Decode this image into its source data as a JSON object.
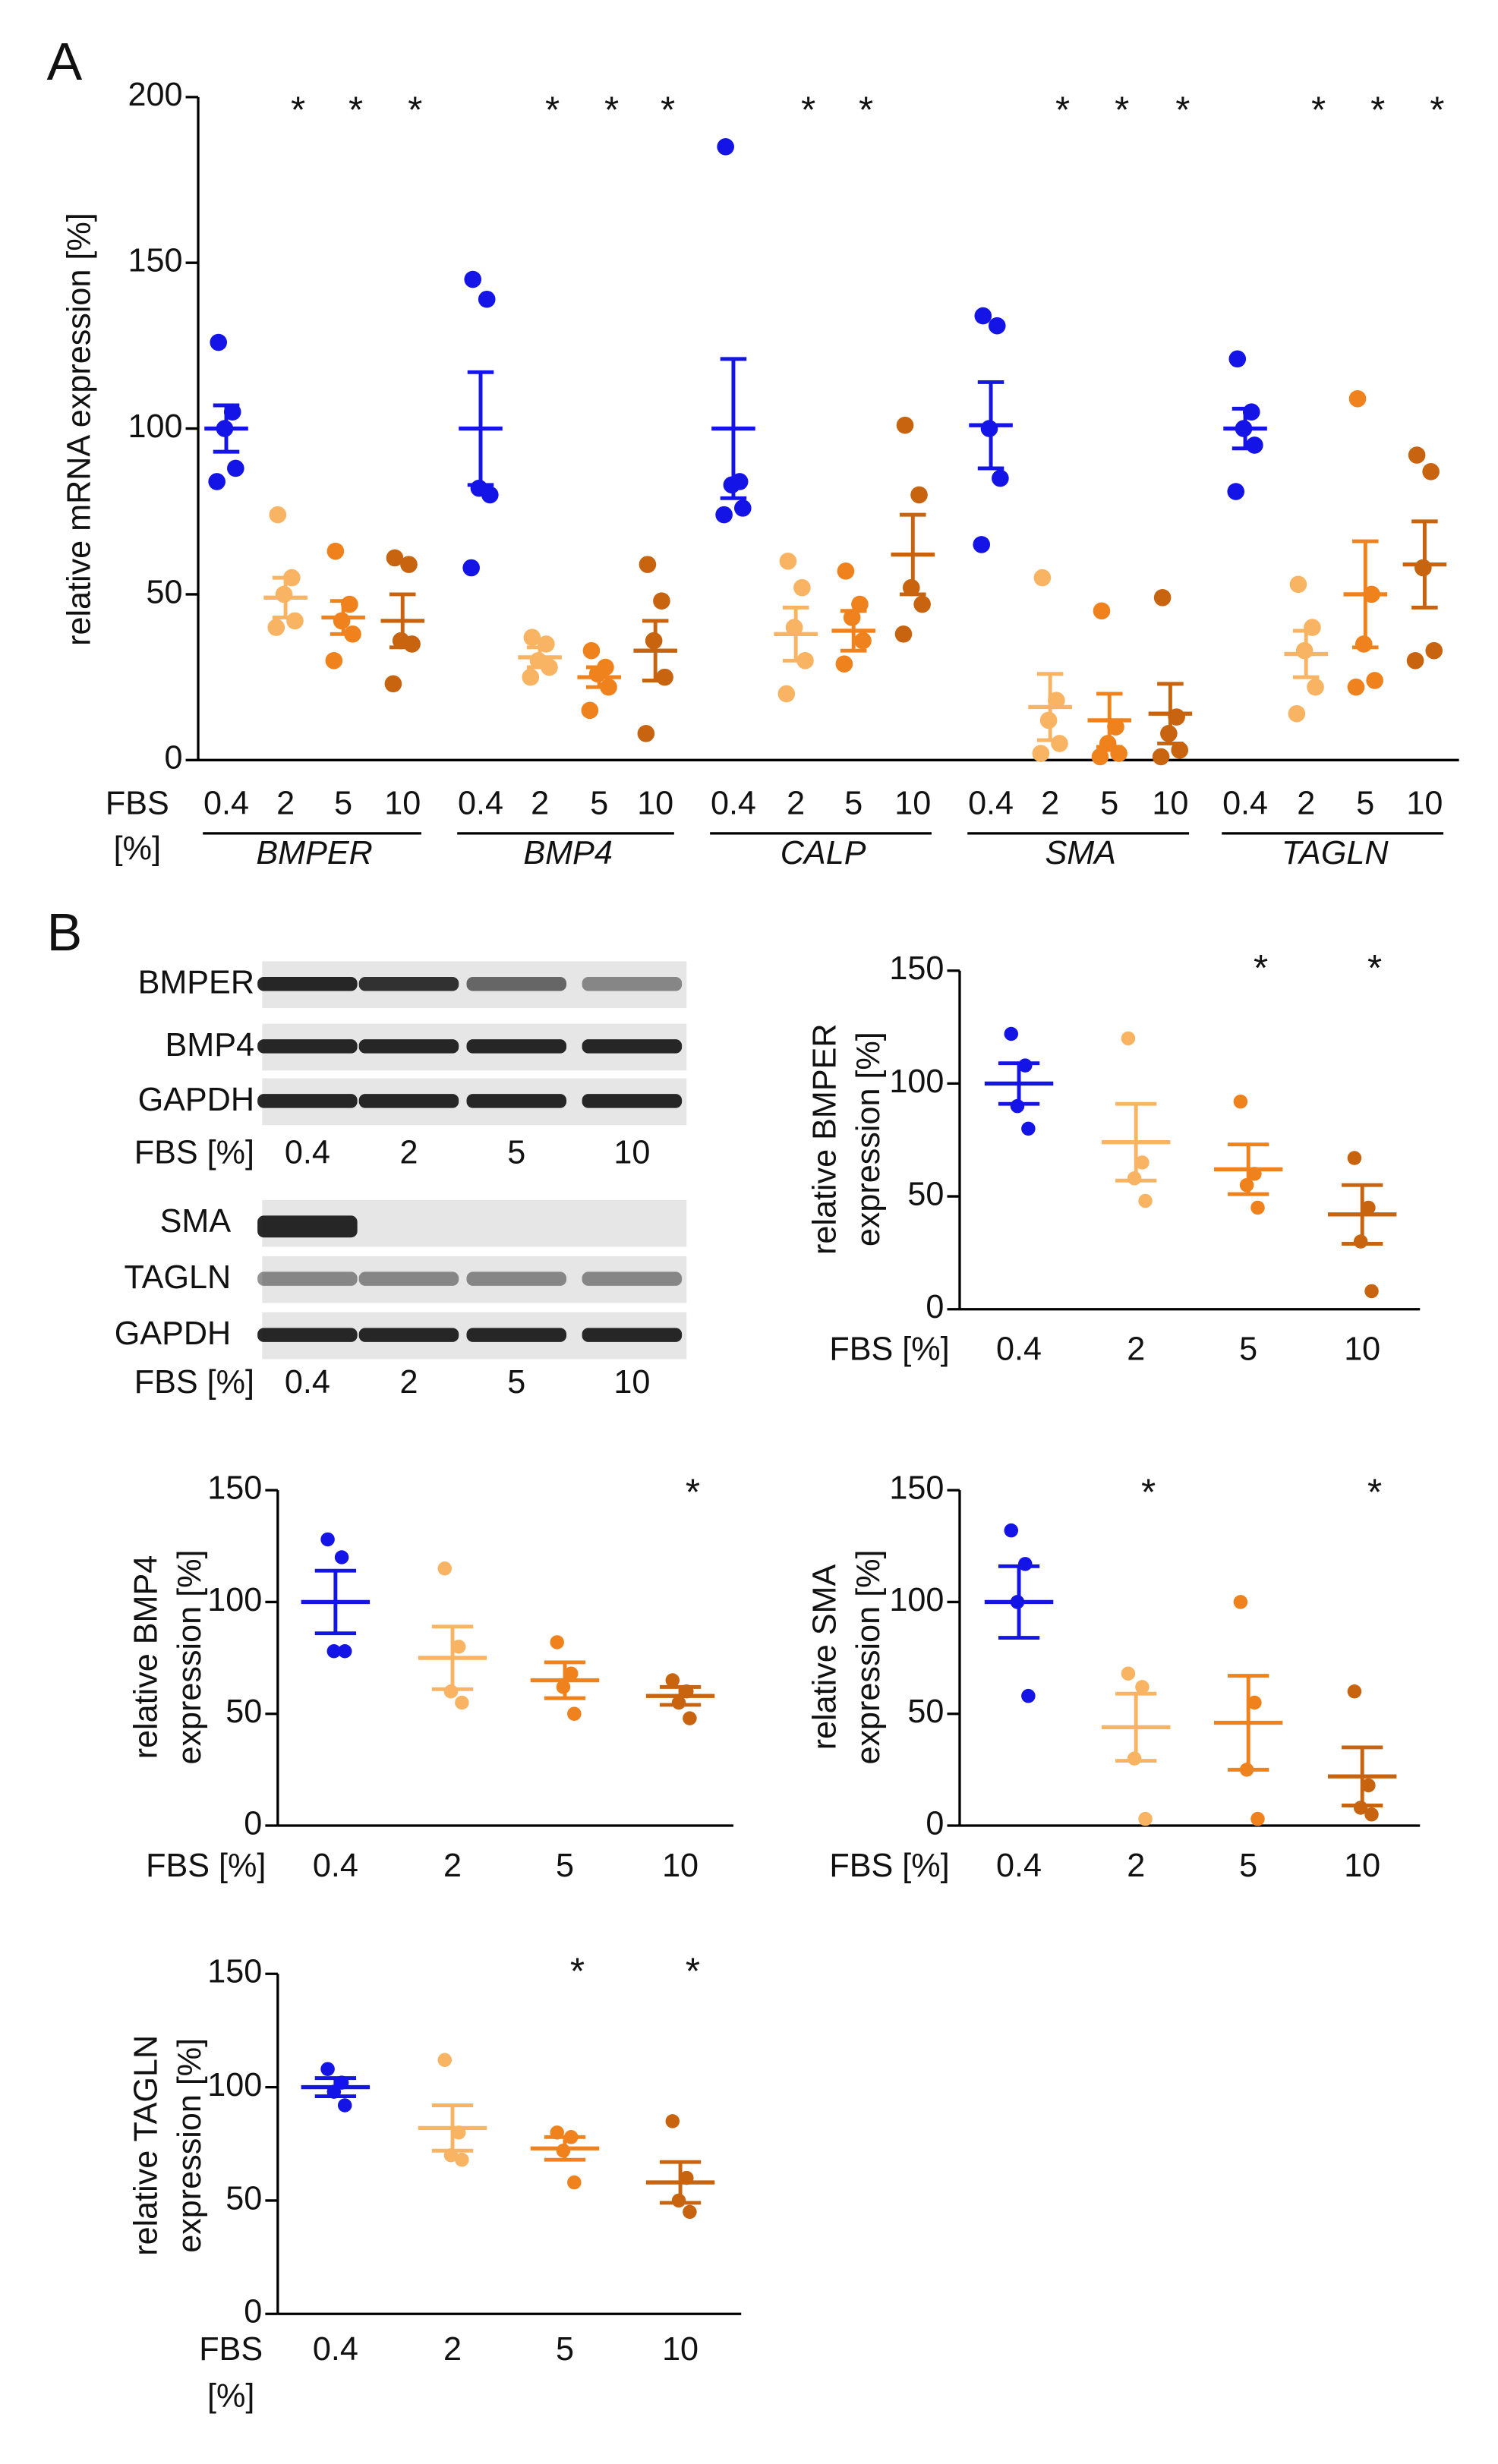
{
  "panels": [
    "A",
    "B"
  ],
  "blots": [
    {
      "rows": [
        "BMPER",
        "BMP4",
        "GAPDH"
      ],
      "xlabel": "FBS [%]",
      "lanes": [
        "0.4",
        "2",
        "5",
        "10"
      ]
    },
    {
      "rows": [
        "SMA",
        "TAGLN",
        "GAPDH"
      ],
      "xlabel": "FBS [%]",
      "lanes": [
        "0.4",
        "2",
        "5",
        "10"
      ]
    }
  ],
  "chart_data": [
    {
      "type": "dot",
      "ylabel": [
        "relative  mRNA expression [%]"
      ],
      "xlabel": [
        "FBS",
        "[%]"
      ],
      "ylim": [
        0,
        200
      ],
      "yticks": [
        0,
        50,
        100,
        150,
        200
      ],
      "colors": [
        "#1414e6",
        "#f9b463",
        "#f0821e",
        "#c8640f"
      ],
      "categories": [
        "0.4",
        "2",
        "5",
        "10"
      ],
      "groups": [
        {
          "name": "BMPER",
          "points": [
            [
              126,
              105,
              100,
              88,
              84
            ],
            [
              74,
              55,
              50,
              42,
              40
            ],
            [
              63,
              47,
              42,
              38,
              30
            ],
            [
              61,
              59,
              36,
              35,
              23
            ]
          ],
          "mean": [
            100,
            49,
            43,
            42
          ],
          "sem": [
            7,
            6,
            5,
            8
          ],
          "stars": [
            null,
            "*",
            "*",
            "*"
          ]
        },
        {
          "name": "BMP4",
          "points": [
            [
              145,
              139,
              82,
              80,
              58
            ],
            [
              37,
              35,
              30,
              28,
              25
            ],
            [
              33,
              28,
              26,
              22,
              15
            ],
            [
              59,
              48,
              36,
              25,
              8
            ]
          ],
          "mean": [
            100,
            31,
            25,
            33
          ],
          "sem": [
            17,
            3,
            3,
            9
          ],
          "stars": [
            null,
            "*",
            "*",
            "*"
          ]
        },
        {
          "name": "CALP",
          "points": [
            [
              185,
              84,
              83,
              76,
              74
            ],
            [
              60,
              52,
              40,
              30,
              20
            ],
            [
              57,
              47,
              43,
              36,
              29
            ],
            [
              101,
              80,
              52,
              47,
              38
            ]
          ],
          "mean": [
            100,
            38,
            39,
            62
          ],
          "sem": [
            21,
            8,
            6,
            12
          ],
          "stars": [
            null,
            "*",
            "*",
            null
          ]
        },
        {
          "name": "SMA",
          "points": [
            [
              134,
              131,
              100,
              85,
              65
            ],
            [
              55,
              18,
              12,
              5,
              2
            ],
            [
              45,
              10,
              5,
              2,
              1
            ],
            [
              49,
              13,
              8,
              3,
              1
            ]
          ],
          "mean": [
            101,
            16,
            12,
            14
          ],
          "sem": [
            13,
            10,
            8,
            9
          ],
          "stars": [
            null,
            "*",
            "*",
            "*"
          ]
        },
        {
          "name": "TAGLN",
          "points": [
            [
              121,
              105,
              100,
              95,
              81
            ],
            [
              53,
              40,
              33,
              22,
              14
            ],
            [
              109,
              50,
              35,
              24,
              22
            ],
            [
              92,
              87,
              58,
              33,
              30
            ]
          ],
          "mean": [
            100,
            32,
            50,
            59
          ],
          "sem": [
            6,
            7,
            16,
            13
          ],
          "stars": [
            null,
            "*",
            "*",
            "*"
          ]
        }
      ]
    },
    {
      "type": "dot",
      "ylabel": [
        "relative BMPER",
        "expression [%]"
      ],
      "xlabel": [
        "FBS [%]"
      ],
      "ylim": [
        0,
        150
      ],
      "yticks": [
        0,
        50,
        100,
        150
      ],
      "colors": [
        "#1414e6",
        "#f9b463",
        "#f0821e",
        "#c8640f"
      ],
      "categories": [
        "0.4",
        "2",
        "5",
        "10"
      ],
      "groups": [
        {
          "points": [
            [
              122,
              108,
              90,
              80
            ],
            [
              120,
              65,
              58,
              48
            ],
            [
              92,
              60,
              55,
              45
            ],
            [
              67,
              45,
              30,
              8
            ]
          ],
          "mean": [
            100,
            74,
            62,
            42
          ],
          "sem": [
            9,
            17,
            11,
            13
          ],
          "stars": [
            null,
            null,
            "*",
            "*"
          ]
        }
      ]
    },
    {
      "type": "dot",
      "ylabel": [
        "relative BMP4",
        "expression [%]"
      ],
      "xlabel": [
        "FBS [%]"
      ],
      "ylim": [
        0,
        150
      ],
      "yticks": [
        0,
        50,
        100,
        150
      ],
      "colors": [
        "#1414e6",
        "#f9b463",
        "#f0821e",
        "#c8640f"
      ],
      "categories": [
        "0.4",
        "2",
        "5",
        "10"
      ],
      "groups": [
        {
          "points": [
            [
              128,
              120,
              78,
              78
            ],
            [
              115,
              80,
              60,
              55
            ],
            [
              82,
              68,
              62,
              50
            ],
            [
              65,
              60,
              55,
              48
            ]
          ],
          "mean": [
            100,
            75,
            65,
            58
          ],
          "sem": [
            14,
            14,
            8,
            4
          ],
          "stars": [
            null,
            null,
            null,
            "*"
          ]
        }
      ]
    },
    {
      "type": "dot",
      "ylabel": [
        "relative SMA",
        "expression [%]"
      ],
      "xlabel": [
        "FBS [%]"
      ],
      "ylim": [
        0,
        150
      ],
      "yticks": [
        0,
        50,
        100,
        150
      ],
      "colors": [
        "#1414e6",
        "#f9b463",
        "#f0821e",
        "#c8640f"
      ],
      "categories": [
        "0.4",
        "2",
        "5",
        "10"
      ],
      "groups": [
        {
          "points": [
            [
              132,
              117,
              100,
              58
            ],
            [
              68,
              62,
              30,
              3
            ],
            [
              100,
              55,
              25,
              3
            ],
            [
              60,
              18,
              8,
              5
            ]
          ],
          "mean": [
            100,
            44,
            46,
            22
          ],
          "sem": [
            16,
            15,
            21,
            13
          ],
          "stars": [
            null,
            "*",
            null,
            "*"
          ]
        }
      ]
    },
    {
      "type": "dot",
      "ylabel": [
        "relative TAGLN",
        "expression [%]"
      ],
      "xlabel": [
        "FBS",
        "[%]"
      ],
      "ylim": [
        0,
        150
      ],
      "yticks": [
        0,
        50,
        100,
        150
      ],
      "colors": [
        "#1414e6",
        "#f9b463",
        "#f0821e",
        "#c8640f"
      ],
      "categories": [
        "0.4",
        "2",
        "5",
        "10"
      ],
      "groups": [
        {
          "points": [
            [
              108,
              102,
              98,
              92
            ],
            [
              112,
              80,
              70,
              68
            ],
            [
              80,
              78,
              72,
              58
            ],
            [
              85,
              60,
              50,
              45
            ]
          ],
          "mean": [
            100,
            82,
            73,
            58
          ],
          "sem": [
            4,
            10,
            5,
            9
          ],
          "stars": [
            null,
            null,
            "*",
            "*"
          ]
        }
      ]
    }
  ]
}
